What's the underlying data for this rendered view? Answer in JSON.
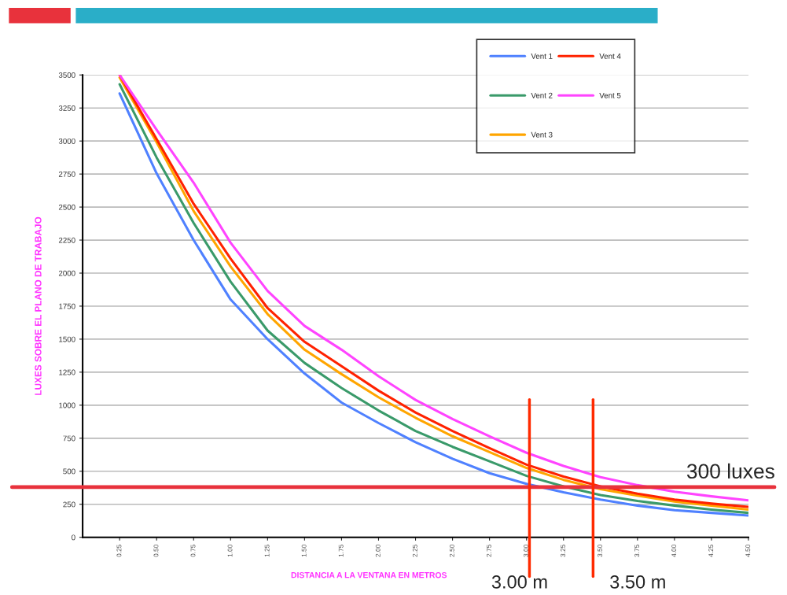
{
  "chart_data": {
    "type": "line",
    "xlabel": "DISTANCIA A LA VENTANA EN METROS",
    "ylabel": "LUXES SOBRE EL PLANO DE TRABAJO",
    "x": [
      0.25,
      0.5,
      0.75,
      1.0,
      1.25,
      1.5,
      1.75,
      2.0,
      2.25,
      2.5,
      2.75,
      3.0,
      3.25,
      3.5,
      3.75,
      4.0,
      4.25,
      4.5
    ],
    "series": [
      {
        "name": "Vent 1",
        "color": "#4f81ff",
        "values": [
          3360,
          2755,
          2250,
          1800,
          1500,
          1240,
          1020,
          865,
          720,
          595,
          485,
          405,
          340,
          285,
          240,
          205,
          185,
          165
        ]
      },
      {
        "name": "Vent 2",
        "color": "#3a9a6a",
        "values": [
          3430,
          2875,
          2380,
          1935,
          1565,
          1320,
          1130,
          960,
          805,
          685,
          575,
          465,
          385,
          320,
          275,
          240,
          210,
          185
        ]
      },
      {
        "name": "Vent 3",
        "color": "#ffa500",
        "values": [
          3480,
          2990,
          2470,
          2050,
          1690,
          1420,
          1235,
          1060,
          905,
          765,
          645,
          525,
          435,
          365,
          315,
          270,
          240,
          210
        ]
      },
      {
        "name": "Vent 4",
        "color": "#ff2200",
        "values": [
          3500,
          3015,
          2525,
          2110,
          1735,
          1480,
          1295,
          1110,
          945,
          805,
          675,
          550,
          460,
          385,
          330,
          285,
          255,
          230
        ]
      },
      {
        "name": "Vent 5",
        "color": "#ff44ff",
        "values": [
          3500,
          3085,
          2685,
          2230,
          1865,
          1600,
          1420,
          1220,
          1040,
          895,
          765,
          640,
          540,
          455,
          395,
          345,
          310,
          280
        ]
      }
    ],
    "xlim": [
      0,
      4.5
    ],
    "xticks": [
      {
        "value": 0.25,
        "label": "0.25"
      },
      {
        "value": 0.5,
        "label": "0.50"
      },
      {
        "value": 0.75,
        "label": "0.75"
      },
      {
        "value": 1.0,
        "label": "1.00"
      },
      {
        "value": 1.25,
        "label": "1.25"
      },
      {
        "value": 1.5,
        "label": "1.50"
      },
      {
        "value": 1.75,
        "label": "1.75"
      },
      {
        "value": 2.0,
        "label": "2.00"
      },
      {
        "value": 2.25,
        "label": "2.25"
      },
      {
        "value": 2.5,
        "label": "2.50"
      },
      {
        "value": 2.75,
        "label": "2.75"
      },
      {
        "value": 3.0,
        "label": "3.00"
      },
      {
        "value": 3.25,
        "label": "3.25"
      },
      {
        "value": 3.5,
        "label": "3.50"
      },
      {
        "value": 3.75,
        "label": "3.75"
      },
      {
        "value": 4.0,
        "label": "4.00"
      },
      {
        "value": 4.25,
        "label": "4.25"
      },
      {
        "value": 4.5,
        "label": "4.50"
      }
    ],
    "ylim": [
      0,
      3500
    ],
    "yticks": [
      0,
      250,
      500,
      750,
      1000,
      1250,
      1500,
      1750,
      2000,
      2250,
      2500,
      2750,
      3000,
      3250,
      3500
    ],
    "ref_lines": [
      {
        "axis": "y",
        "value": 380,
        "label": "300 luxes",
        "color": "#e8323c"
      },
      {
        "axis": "x",
        "value": 3.02,
        "label": "3.00 m",
        "color": "#ff2a00"
      },
      {
        "axis": "x",
        "value": 3.45,
        "label": "3.50 m",
        "color": "#ff2a00"
      }
    ],
    "grid": "y",
    "legend": "top right",
    "line_style": "solid",
    "marker": "none"
  }
}
